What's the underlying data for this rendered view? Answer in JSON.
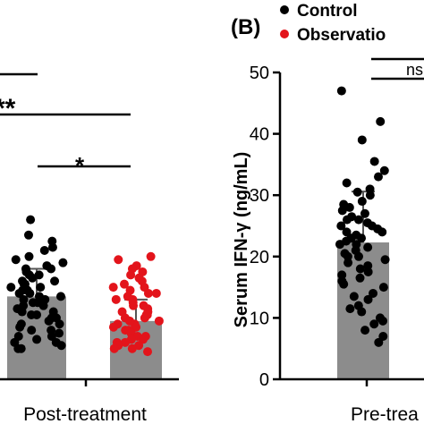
{
  "panel_label": "(B)",
  "legend": [
    {
      "label": "Control",
      "color": "#000000"
    },
    {
      "label": "Observatio",
      "color": "#e3141b"
    }
  ],
  "significance": {
    "top_left": "**",
    "mid_left": "*",
    "right": "ns"
  },
  "chart_data": [
    {
      "type": "bar",
      "panel": "left (cropped)",
      "categories": [
        "Post-treatment"
      ],
      "series": [
        {
          "name": "Control",
          "color": "#000000",
          "mean": 13.5,
          "sd": 4.5,
          "points": [
            26,
            23.5,
            22.5,
            21.5,
            21,
            20,
            19.5,
            19,
            18.5,
            18,
            18,
            17.5,
            17,
            17,
            16.5,
            16,
            16,
            15.5,
            15.5,
            15,
            15,
            14.5,
            14.5,
            14,
            14,
            13.5,
            13.5,
            13,
            13,
            12.5,
            12.5,
            12,
            12,
            11.5,
            11,
            11,
            10.5,
            10.5,
            10,
            10,
            9.5,
            9,
            9,
            8.5,
            8,
            8,
            7.5,
            7,
            7,
            6.5,
            6,
            6,
            5.5,
            5,
            5
          ]
        },
        {
          "name": "Observation",
          "color": "#e3141b",
          "mean": 9.5,
          "sd": 3.5,
          "points": [
            20,
            19.5,
            18.5,
            18,
            17.5,
            17,
            16.5,
            16,
            15.5,
            15,
            15,
            14.5,
            14,
            14,
            13.5,
            13,
            13,
            12.5,
            12,
            12,
            11.5,
            11,
            11,
            10.5,
            10.5,
            10,
            10,
            9.5,
            9.5,
            9,
            9,
            8.5,
            8.5,
            8,
            8,
            7.5,
            7.5,
            7,
            7,
            6.5,
            6.5,
            6,
            6,
            5.5,
            5.5,
            5,
            5,
            4.5
          ]
        }
      ]
    },
    {
      "type": "bar",
      "panel": "B",
      "categories": [
        "Pre-trea"
      ],
      "ylabel": "Serum IFN-γ (ng/mL)",
      "ylim": [
        0,
        50
      ],
      "yticks": [
        0,
        10,
        20,
        30,
        40,
        50
      ],
      "series": [
        {
          "name": "Control",
          "color": "#000000",
          "mean": 22.3,
          "sd": 8.3,
          "points": [
            47,
            42,
            39,
            35.5,
            34,
            33,
            32,
            31,
            30.5,
            30,
            29,
            28.5,
            28,
            27.5,
            27,
            26.5,
            26,
            26,
            25.5,
            25,
            25,
            24.5,
            24,
            24,
            23.5,
            23,
            23,
            22.5,
            22,
            22,
            21.5,
            21,
            20.5,
            20,
            20,
            19.5,
            19,
            18.5,
            18,
            17.5,
            17,
            16.5,
            16,
            15.5,
            15,
            14,
            13.5,
            13,
            12,
            11.5,
            11,
            10,
            9.5,
            9,
            8,
            7,
            6
          ]
        }
      ]
    }
  ],
  "xlabels": {
    "left": "Post-treatment",
    "right": "Pre-trea"
  }
}
